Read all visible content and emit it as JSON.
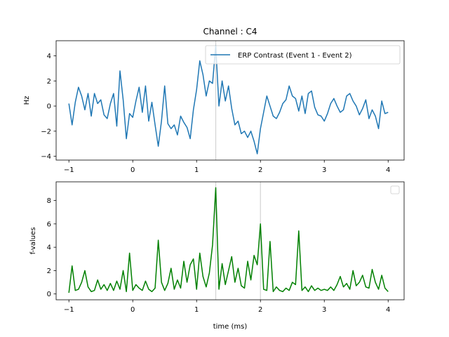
{
  "figure_title": "Channel : C4",
  "chart_data": [
    {
      "type": "line",
      "title": "Channel : C4",
      "xlabel": "",
      "ylabel": "Hz",
      "xlim": [
        -1.2,
        4.25
      ],
      "ylim": [
        -4.3,
        5.2
      ],
      "xticks": [
        -1,
        0,
        1,
        2,
        3,
        4
      ],
      "yticks": [
        -4,
        -2,
        0,
        2,
        4
      ],
      "legend": "top-right",
      "grid": false,
      "vlines": [
        1.3
      ],
      "vline_color": "#d3d3d3",
      "series": [
        {
          "name": "ERP Contrast (Event 1 - Event 2)",
          "color": "#1f77b4",
          "x": [
            -1.0,
            -0.95,
            -0.9,
            -0.85,
            -0.8,
            -0.75,
            -0.7,
            -0.65,
            -0.6,
            -0.55,
            -0.5,
            -0.45,
            -0.4,
            -0.35,
            -0.3,
            -0.25,
            -0.2,
            -0.15,
            -0.1,
            -0.05,
            0.0,
            0.05,
            0.1,
            0.15,
            0.2,
            0.25,
            0.3,
            0.35,
            0.4,
            0.45,
            0.5,
            0.55,
            0.6,
            0.65,
            0.7,
            0.75,
            0.8,
            0.85,
            0.9,
            0.95,
            1.0,
            1.05,
            1.1,
            1.15,
            1.2,
            1.25,
            1.3,
            1.35,
            1.4,
            1.45,
            1.5,
            1.55,
            1.6,
            1.65,
            1.7,
            1.75,
            1.8,
            1.85,
            1.9,
            1.95,
            2.0,
            2.05,
            2.1,
            2.15,
            2.2,
            2.25,
            2.3,
            2.35,
            2.4,
            2.45,
            2.5,
            2.55,
            2.6,
            2.65,
            2.7,
            2.75,
            2.8,
            2.85,
            2.9,
            2.95,
            3.0,
            3.05,
            3.1,
            3.15,
            3.2,
            3.25,
            3.3,
            3.35,
            3.4,
            3.45,
            3.5,
            3.55,
            3.6,
            3.65,
            3.7,
            3.75,
            3.8,
            3.85,
            3.9,
            3.95,
            4.0
          ],
          "y": [
            0.2,
            -1.5,
            0.3,
            1.5,
            0.8,
            -0.3,
            1.0,
            -0.8,
            1.0,
            0.2,
            0.5,
            -0.7,
            -1.0,
            0.2,
            1.0,
            -1.6,
            2.8,
            0.5,
            -2.6,
            -0.6,
            -0.9,
            0.4,
            1.5,
            -0.5,
            1.6,
            -1.2,
            0.3,
            -1.5,
            -3.2,
            -1.2,
            1.6,
            -1.4,
            -1.8,
            -1.5,
            -2.3,
            -0.8,
            -1.3,
            -1.7,
            -2.6,
            -0.3,
            1.3,
            3.6,
            2.5,
            0.8,
            2.0,
            1.8,
            4.8,
            0.0,
            2.0,
            0.4,
            1.6,
            -0.2,
            -1.5,
            -1.2,
            -2.2,
            -2.0,
            -2.5,
            -2.0,
            -2.8,
            -3.8,
            -1.8,
            -0.5,
            0.8,
            0.0,
            -0.8,
            -1.0,
            -0.5,
            0.2,
            0.5,
            1.6,
            0.8,
            0.6,
            -0.4,
            0.8,
            -0.6,
            1.0,
            1.2,
            -0.1,
            -0.7,
            -0.8,
            -1.2,
            -0.6,
            0.2,
            0.6,
            0.0,
            -0.5,
            -0.3,
            0.8,
            1.0,
            0.4,
            0.0,
            -0.7,
            -0.2,
            0.5,
            -1.0,
            -0.3,
            -0.8,
            -1.8,
            0.4,
            -0.6,
            -0.5
          ]
        }
      ]
    },
    {
      "type": "line",
      "title": "",
      "xlabel": "time (ms)",
      "ylabel": "f-values",
      "xlim": [
        -1.2,
        4.25
      ],
      "ylim": [
        -0.5,
        9.6
      ],
      "xticks": [
        -1,
        0,
        1,
        2,
        3,
        4
      ],
      "yticks": [
        0,
        2,
        4,
        6,
        8
      ],
      "legend": "top-right",
      "legend_empty": true,
      "grid": false,
      "vlines": [
        1.3,
        2.0
      ],
      "vline_color": "#d3d3d3",
      "series": [
        {
          "color": "#008000",
          "x": [
            -1.0,
            -0.95,
            -0.9,
            -0.85,
            -0.8,
            -0.75,
            -0.7,
            -0.65,
            -0.6,
            -0.55,
            -0.5,
            -0.45,
            -0.4,
            -0.35,
            -0.3,
            -0.25,
            -0.2,
            -0.15,
            -0.1,
            -0.05,
            0.0,
            0.05,
            0.1,
            0.15,
            0.2,
            0.25,
            0.3,
            0.35,
            0.4,
            0.45,
            0.5,
            0.55,
            0.6,
            0.65,
            0.7,
            0.75,
            0.8,
            0.85,
            0.9,
            0.95,
            1.0,
            1.05,
            1.1,
            1.15,
            1.2,
            1.25,
            1.3,
            1.35,
            1.4,
            1.45,
            1.5,
            1.55,
            1.6,
            1.65,
            1.7,
            1.75,
            1.8,
            1.85,
            1.9,
            1.95,
            2.0,
            2.05,
            2.1,
            2.15,
            2.2,
            2.25,
            2.3,
            2.35,
            2.4,
            2.45,
            2.5,
            2.55,
            2.6,
            2.65,
            2.7,
            2.75,
            2.8,
            2.85,
            2.9,
            2.95,
            3.0,
            3.05,
            3.1,
            3.15,
            3.2,
            3.25,
            3.3,
            3.35,
            3.4,
            3.45,
            3.5,
            3.55,
            3.6,
            3.65,
            3.7,
            3.75,
            3.8,
            3.85,
            3.9,
            3.95,
            4.0
          ],
          "y": [
            0.1,
            2.4,
            0.3,
            0.4,
            1.0,
            2.0,
            0.6,
            0.2,
            0.3,
            1.2,
            0.4,
            0.8,
            0.3,
            0.9,
            0.3,
            1.1,
            0.4,
            2.0,
            0.2,
            3.5,
            0.3,
            0.8,
            0.5,
            0.3,
            1.1,
            0.4,
            0.2,
            0.5,
            4.6,
            1.0,
            0.3,
            0.9,
            2.2,
            0.4,
            1.2,
            0.5,
            2.8,
            1.0,
            2.5,
            3.0,
            0.4,
            3.5,
            1.5,
            0.6,
            1.8,
            4.2,
            9.1,
            0.4,
            2.6,
            0.8,
            2.0,
            3.2,
            1.0,
            2.2,
            0.7,
            0.5,
            2.8,
            1.2,
            3.3,
            2.5,
            6.0,
            0.4,
            0.3,
            4.5,
            0.2,
            0.6,
            0.3,
            0.2,
            0.5,
            0.3,
            1.0,
            0.8,
            5.4,
            0.3,
            0.6,
            0.2,
            0.7,
            0.3,
            0.5,
            0.3,
            0.4,
            0.3,
            0.6,
            0.3,
            0.8,
            1.5,
            0.6,
            0.9,
            0.4,
            2.0,
            0.7,
            1.0,
            1.6,
            0.6,
            0.5,
            2.1,
            1.0,
            0.4,
            1.6,
            0.5,
            0.2
          ]
        }
      ]
    }
  ]
}
